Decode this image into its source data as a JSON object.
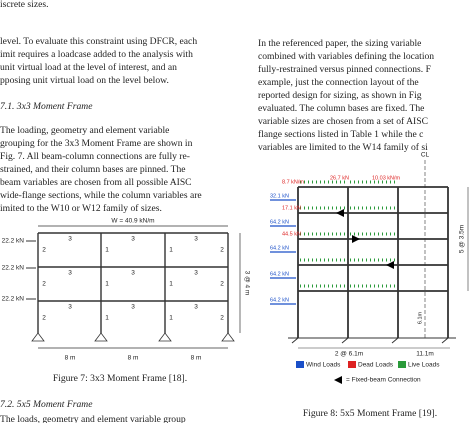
{
  "left_column": {
    "top_line": "iscrete sizes.",
    "paragraph_1": [
      "level. To evaluate this constraint using DFCR, each",
      "imit requires a loadcase added to the analysis with",
      " unit virtual load at the level of interest, and an",
      "pposing unit virtual load on the level below."
    ],
    "section_1": "7.1.  3x3 Moment Frame",
    "paragraph_2": [
      "   The loading, geometry and element variable",
      "grouping for the 3x3 Moment Frame are shown in",
      "Fig. 7. All beam-column connections are fully re-",
      "strained, and their column bases are pinned. The",
      "beam variables are chosen from all possible AISC",
      "wide-flange sections, while the column variables are",
      "imited to the W10 or W12 family of sizes."
    ],
    "figure_7": {
      "distributed_load": "W = 40.9 kN/m",
      "lateral_loads": [
        "22.2 kN",
        "22.2 kN",
        "22.2 kN"
      ],
      "beam_label": "3",
      "exterior_column_label": "2",
      "interior_column_label": "1",
      "bay_width": "8 m",
      "story_height": "3 @ 4 m"
    },
    "caption_7": "Figure 7: 3x3 Moment Frame [18].",
    "section_2": "7.2.  5x5 Moment Frame",
    "paragraph_3": [
      "   The loads, geometry and element variable group"
    ]
  },
  "right_column": {
    "paragraph_1": [
      "In the referenced paper, the sizing variable",
      "combined with variables defining the location",
      "fully-restrained versus pinned connections. F",
      "example, just the connection layout of the",
      "reported design for sizing, as shown in Fig",
      "evaluated. The column bases are fixed. The",
      "variable sizes are chosen from a set of AISC",
      "flange sections listed in Table 1 while the c",
      "variables are limited to the W14 family of si"
    ],
    "figure_8": {
      "wind_loads": [
        "32.1 kN",
        "64.2 kN",
        "64.2 kN",
        "64.2 kN",
        "64.2 kN"
      ],
      "dead_loads": [
        "8.7 kN/m",
        "17.1 kN",
        "26.7 kN",
        "44.5 kN",
        "10.03 kN/m"
      ],
      "centerline": "CL",
      "bay_widths": "2 @ 6.1m",
      "right_span": "11.1m",
      "story_heights": "5 @ 3.5m",
      "bottom_height": "6.1m",
      "legend": [
        "Wind Loads",
        "Dead Loads",
        "Live Loads"
      ],
      "connection_note": "= Fixed-beam Connection"
    },
    "caption_8": "Figure 8: 5x5 Moment Frame [19]."
  }
}
